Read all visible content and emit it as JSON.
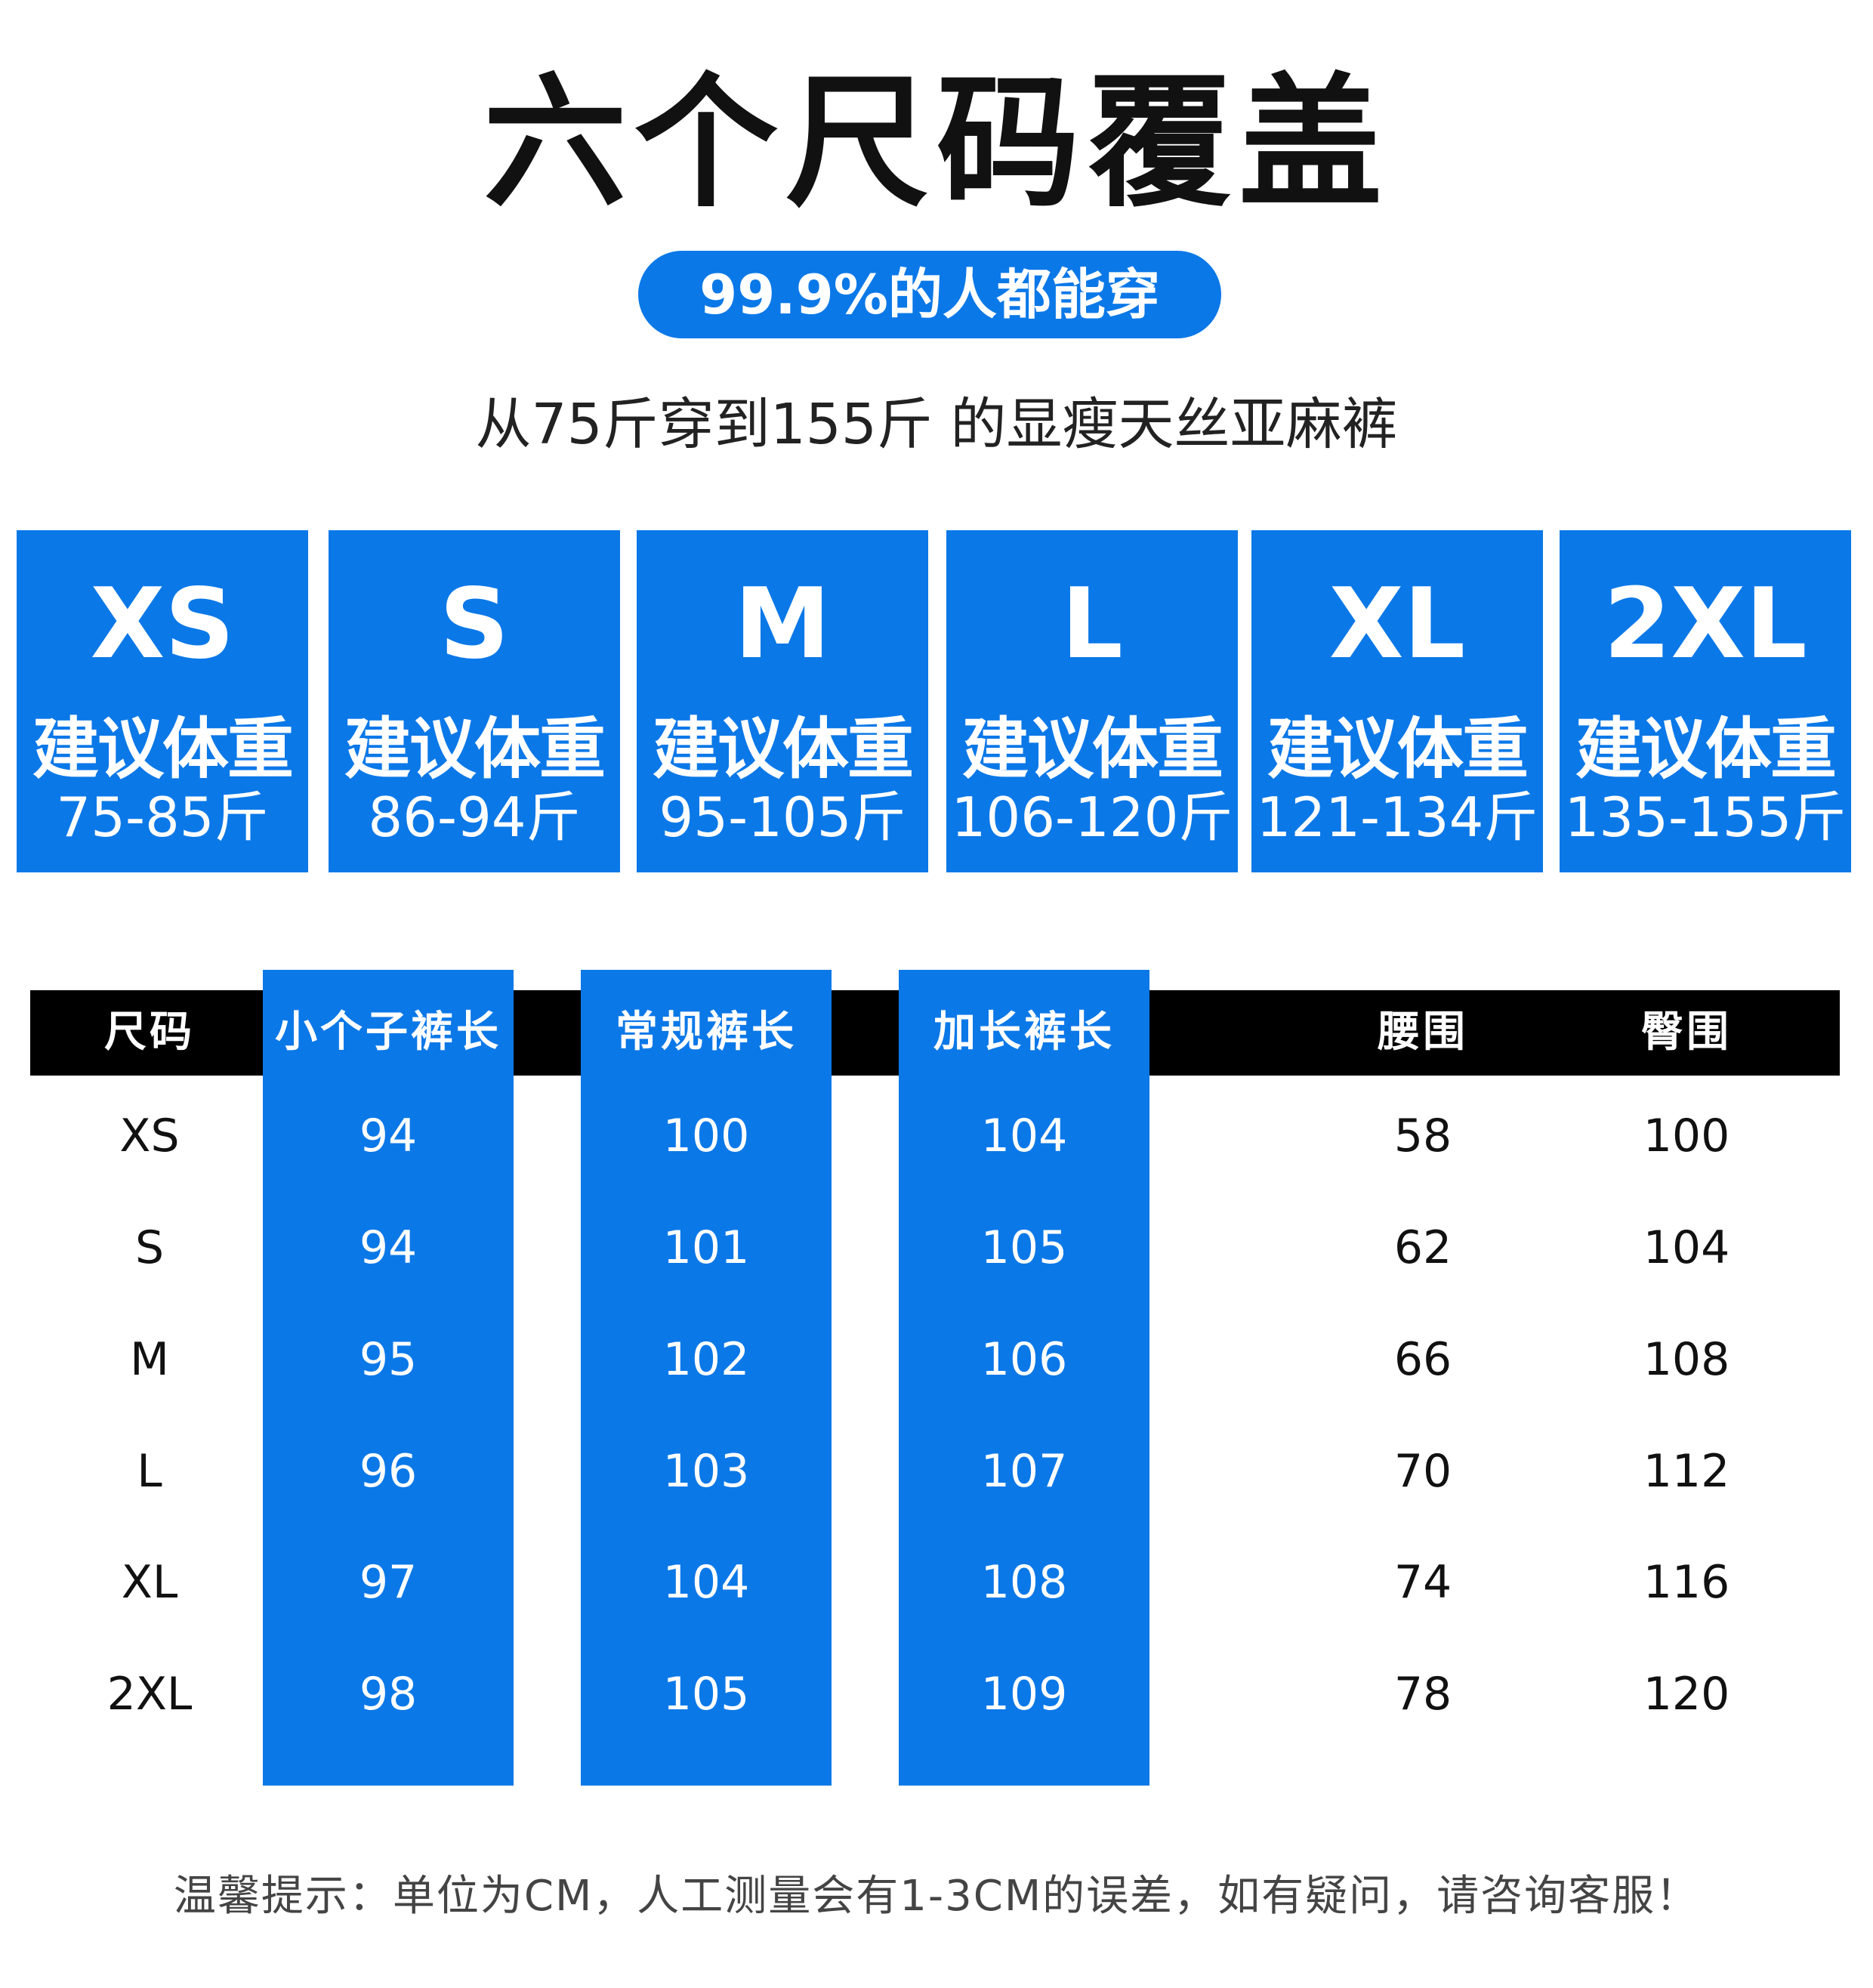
{
  "title": "六个尺码覆盖",
  "badge": "99.9%的人都能穿",
  "subtitle": "从75斤穿到155斤 的显瘦天丝亚麻裤",
  "accent_color": "#0b78e8",
  "cards": [
    {
      "size": "XS",
      "label": "建议体重",
      "weight": "75-85斤"
    },
    {
      "size": "S",
      "label": "建议体重",
      "weight": "86-94斤"
    },
    {
      "size": "M",
      "label": "建议体重",
      "weight": "95-105斤"
    },
    {
      "size": "L",
      "label": "建议体重",
      "weight": "106-120斤"
    },
    {
      "size": "XL",
      "label": "建议体重",
      "weight": "121-134斤"
    },
    {
      "size": "2XL",
      "label": "建议体重",
      "weight": "135-155斤"
    }
  ],
  "table": {
    "headers": [
      "尺码",
      "小个子裤长",
      "常规裤长",
      "加长裤长",
      "腰围",
      "臀围"
    ],
    "rows": [
      [
        "XS",
        "94",
        "100",
        "104",
        "58",
        "100"
      ],
      [
        "S",
        "94",
        "101",
        "105",
        "62",
        "104"
      ],
      [
        "M",
        "95",
        "102",
        "106",
        "66",
        "108"
      ],
      [
        "L",
        "96",
        "103",
        "107",
        "70",
        "112"
      ],
      [
        "XL",
        "97",
        "104",
        "108",
        "74",
        "116"
      ],
      [
        "2XL",
        "98",
        "105",
        "109",
        "78",
        "120"
      ]
    ]
  },
  "footer": "温馨提示：单位为CM，人工测量会有1-3CM的误差，如有疑问，请咨询客服！"
}
